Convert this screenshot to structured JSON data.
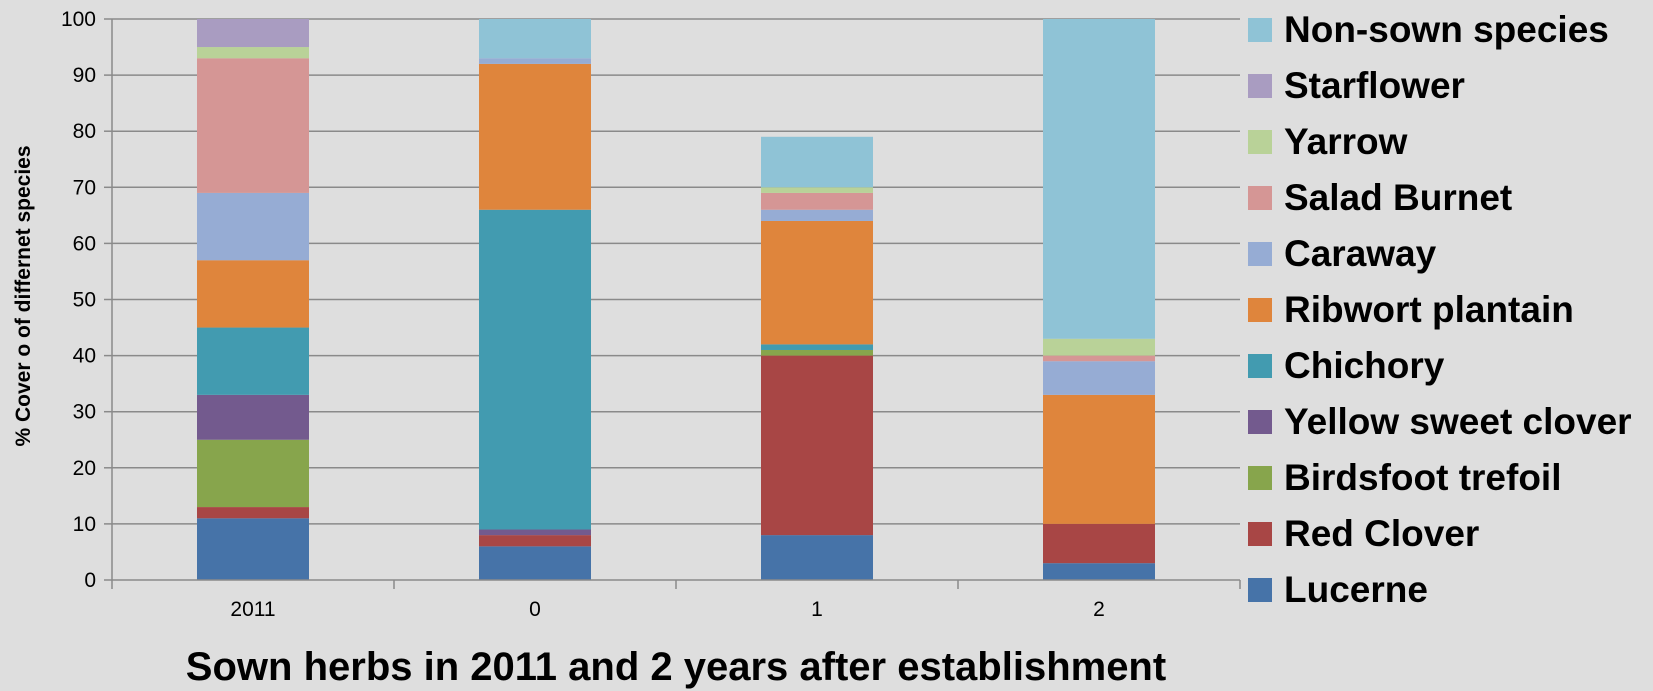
{
  "chart_data": {
    "type": "bar",
    "stacked": true,
    "title": "Sown herbs in 2011 and 2 years after establishment",
    "xlabel": "",
    "ylabel": "% Cover o of differnet species",
    "ylim": [
      0,
      100
    ],
    "yticks": [
      0,
      10,
      20,
      30,
      40,
      50,
      60,
      70,
      80,
      90,
      100
    ],
    "categories": [
      "2011",
      "0",
      "1",
      "2"
    ],
    "grid": true,
    "legend_position": "right",
    "series": [
      {
        "name": "Lucerne",
        "color": "#4673a8",
        "values": [
          11,
          6,
          8,
          3
        ]
      },
      {
        "name": "Red Clover",
        "color": "#a84645",
        "values": [
          2,
          2,
          32,
          7
        ]
      },
      {
        "name": "Birdsfoot trefoil",
        "color": "#87a54c",
        "values": [
          12,
          0,
          0,
          0
        ]
      },
      {
        "name": "Yellow sweet clover",
        "color": "#735a8e",
        "values": [
          8,
          1,
          0,
          0
        ]
      },
      {
        "name": "Chichory",
        "color": "#429bb0",
        "values": [
          12,
          57,
          1,
          0
        ]
      },
      {
        "name": "Ribwort plantain",
        "color": "#df853c",
        "values": [
          12,
          26,
          22,
          23
        ]
      },
      {
        "name": "Caraway",
        "color": "#96acd4",
        "values": [
          12,
          1,
          2,
          6
        ]
      },
      {
        "name": "Salad Burnet",
        "color": "#d59695",
        "values": [
          24,
          0,
          3,
          1
        ]
      },
      {
        "name": "Yarrow",
        "color": "#b9d298",
        "values": [
          2,
          0,
          1,
          3
        ]
      },
      {
        "name": "Starflower",
        "color": "#a99cc1",
        "values": [
          5,
          0,
          0,
          0
        ]
      },
      {
        "name": "Non-sown species",
        "color": "#8fc3d6",
        "values": [
          0,
          7,
          9,
          57
        ]
      }
    ],
    "extra_segments": [
      {
        "category": "1",
        "after_series": "Red Clover",
        "color": "#87a54c",
        "value": 1
      }
    ]
  }
}
